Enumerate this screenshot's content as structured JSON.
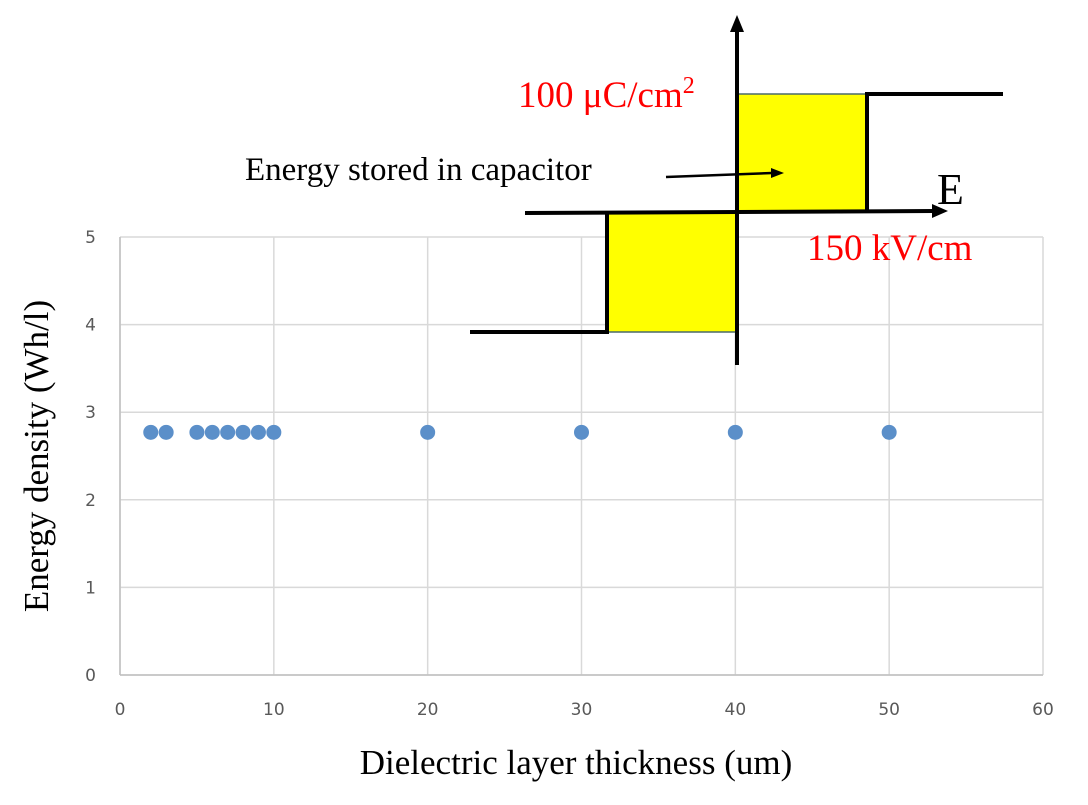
{
  "chart_data": {
    "type": "scatter",
    "title": "",
    "xlabel": "Dielectric layer thickness (um)",
    "ylabel": "Energy density (Wh/l)",
    "xlim": [
      0,
      60
    ],
    "ylim": [
      0,
      5
    ],
    "xticks": [
      "0",
      "10",
      "20",
      "30",
      "40",
      "50",
      "60"
    ],
    "yticks": [
      "0",
      "1",
      "2",
      "3",
      "4",
      "5"
    ],
    "grid": true,
    "series": [
      {
        "name": "Energy density",
        "color": "#5b8fc9",
        "x": [
          2,
          3,
          5,
          6,
          7,
          8,
          9,
          10,
          20,
          30,
          40,
          50
        ],
        "y": [
          2.77,
          2.77,
          2.77,
          2.77,
          2.77,
          2.77,
          2.77,
          2.77,
          2.77,
          2.77,
          2.77,
          2.77
        ]
      }
    ],
    "inset": {
      "caption": "Energy stored in capacitor",
      "polarization_label": "100 μC/cm",
      "polarization_superscript": "2",
      "field_label": "150 kV/cm",
      "field_axis_label": "E",
      "fill_color": "#ffff00",
      "label_color": "#ff0000"
    }
  }
}
